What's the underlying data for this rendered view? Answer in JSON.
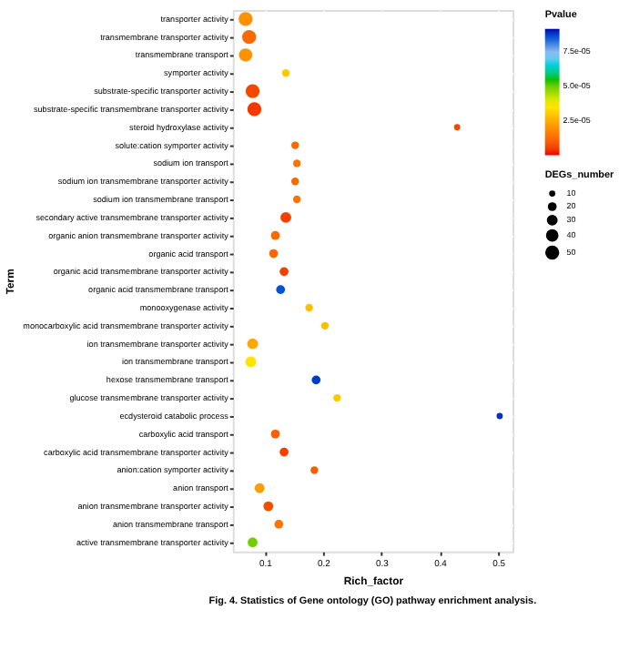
{
  "chart_data": {
    "type": "bubble",
    "orientation": "horizontal",
    "categories": [
      "transporter activity",
      "transmembrane transporter activity",
      "transmembrane transport",
      "symporter activity",
      "substrate-specific transporter activity",
      "substrate-specific transmembrane transporter activity",
      "steroid hydroxylase activity",
      "solute:cation symporter activity",
      "sodium ion transport",
      "sodium ion transmembrane transporter activity",
      "sodium ion transmembrane transport",
      "secondary active transmembrane transporter activity",
      "organic anion transmembrane transporter activity",
      "organic acid transport",
      "organic acid transmembrane transporter activity",
      "organic acid transmembrane transport",
      "monooxygenase activity",
      "monocarboxylic acid transmembrane transporter activity",
      "ion transmembrane transporter activity",
      "ion transmembrane transport",
      "hexose transmembrane transport",
      "glucose transmembrane transporter activity",
      "ecdysteroid catabolic process",
      "carboxylic acid transport",
      "carboxylic acid transmembrane transporter activity",
      "anion:cation symporter activity",
      "anion transport",
      "anion transmembrane transporter activity",
      "anion transmembrane transport",
      "active transmembrane transporter activity"
    ],
    "values": [
      0.067,
      0.073,
      0.067,
      0.136,
      0.079,
      0.082,
      0.43,
      0.152,
      0.155,
      0.152,
      0.155,
      0.136,
      0.118,
      0.115,
      0.133,
      0.127,
      0.176,
      0.203,
      0.079,
      0.076,
      0.188,
      0.224,
      0.503,
      0.118,
      0.133,
      0.185,
      0.091,
      0.106,
      0.124,
      0.079
    ],
    "sizes": [
      50,
      50,
      45,
      15,
      50,
      50,
      10,
      15,
      15,
      15,
      15,
      30,
      20,
      20,
      20,
      20,
      15,
      15,
      30,
      30,
      20,
      15,
      10,
      20,
      20,
      15,
      25,
      25,
      20,
      25
    ],
    "size_legend": [
      10,
      20,
      30,
      40,
      50
    ],
    "cvalues": [
      2e-05,
      1.2e-05,
      2e-05,
      3e-05,
      6e-06,
      4e-06,
      6e-06,
      1.2e-05,
      1.4e-05,
      1.2e-05,
      1.4e-05,
      5e-06,
      1.2e-05,
      1.2e-05,
      5e-06,
      8.6e-05,
      2.8e-05,
      2.8e-05,
      2.4e-05,
      3.5e-05,
      8.8e-05,
      3e-05,
      8.9e-05,
      1e-05,
      5e-06,
      1e-05,
      2.2e-05,
      7e-06,
      1.4e-05,
      5e-05
    ],
    "clim": [
      0,
      9.2e-05
    ],
    "cticks": [
      {
        "value": 2.5e-05,
        "label": "2.5e-05"
      },
      {
        "value": 5e-05,
        "label": "5.0e-05"
      },
      {
        "value": 7.5e-05,
        "label": "7.5e-05"
      }
    ],
    "clabel": "Pvalue",
    "legend_title": "DEGs_number",
    "xlabel": "Rich_factor",
    "ylabel": "Term",
    "xlim": [
      0.045,
      0.525
    ],
    "xticks": [
      0.1,
      0.2,
      0.3,
      0.4,
      0.5
    ],
    "grid": true,
    "annotations": [
      "Fig. 4. Statistics of Gene ontology (GO) pathway enrichment analysis."
    ]
  }
}
